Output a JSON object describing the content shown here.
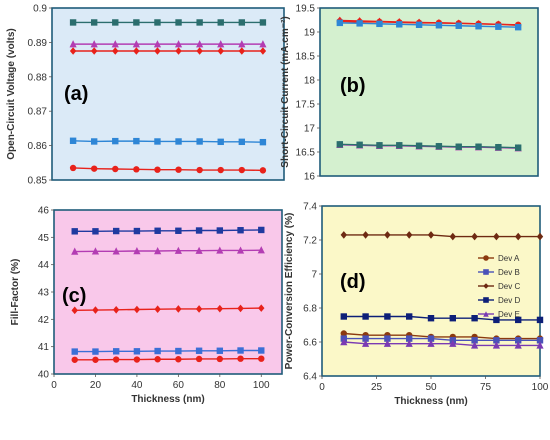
{
  "chart_data": [
    {
      "type": "line",
      "panel_label": "(a)",
      "background": "#dbeaf7",
      "xlabel": "",
      "ylabel": "Open-Circuit Voltage (volts)",
      "ylim": [
        0.85,
        0.9
      ],
      "yticks": [
        "0.85",
        "0.86",
        "0.87",
        "0.88",
        "0.89",
        "0.9"
      ],
      "xlim": [
        0,
        110
      ],
      "xticks": [],
      "x": [
        10,
        20,
        30,
        40,
        50,
        60,
        70,
        80,
        90,
        100
      ],
      "series": [
        {
          "key": "A",
          "color": "#e8221b",
          "marker": "circle",
          "values": [
            0.8535,
            0.8533,
            0.8532,
            0.8531,
            0.853,
            0.853,
            0.8529,
            0.8529,
            0.8529,
            0.8528
          ]
        },
        {
          "key": "B",
          "color": "#2e86d6",
          "marker": "square",
          "values": [
            0.8614,
            0.8612,
            0.8613,
            0.8613,
            0.8612,
            0.8612,
            0.8612,
            0.8611,
            0.8611,
            0.861
          ]
        },
        {
          "key": "C",
          "color": "#e8221b",
          "marker": "diamond",
          "values": [
            0.8875,
            0.8875,
            0.8875,
            0.8875,
            0.8875,
            0.8875,
            0.8875,
            0.8875,
            0.8875,
            0.8875
          ]
        },
        {
          "key": "D",
          "color": "#2b6e6e",
          "marker": "square",
          "values": [
            0.8958,
            0.8958,
            0.8958,
            0.8958,
            0.8958,
            0.8958,
            0.8958,
            0.8958,
            0.8958,
            0.8958
          ]
        },
        {
          "key": "E",
          "color": "#b33db3",
          "marker": "triangle",
          "values": [
            0.8895,
            0.8895,
            0.8895,
            0.8895,
            0.8895,
            0.8895,
            0.8895,
            0.8895,
            0.8895,
            0.8895
          ]
        }
      ]
    },
    {
      "type": "line",
      "panel_label": "(b)",
      "background": "#d4f0cf",
      "xlabel": "",
      "ylabel": "Short-Circuit Current (mA.cm⁻²)",
      "ylim": [
        16,
        19.5
      ],
      "yticks": [
        "16",
        "16.5",
        "17",
        "17.5",
        "18",
        "18.5",
        "19",
        "19.5"
      ],
      "xlim": [
        0,
        110
      ],
      "xticks": [],
      "x": [
        10,
        20,
        30,
        40,
        50,
        60,
        70,
        80,
        90,
        100
      ],
      "series": [
        {
          "key": "A",
          "color": "#e8221b",
          "marker": "circle",
          "values": [
            19.22,
            19.21,
            19.21,
            19.2,
            19.19,
            19.19,
            19.18,
            19.17,
            19.16,
            19.15
          ]
        },
        {
          "key": "C",
          "color": "#e8221b",
          "marker": "diamond",
          "values": [
            19.24,
            19.23,
            19.22,
            19.21,
            19.2,
            19.19,
            19.18,
            19.17,
            19.16,
            19.14
          ]
        },
        {
          "key": "B",
          "color": "#2e86d6",
          "marker": "square",
          "values": [
            19.19,
            19.18,
            19.17,
            19.16,
            19.15,
            19.14,
            19.13,
            19.12,
            19.11,
            19.1
          ]
        },
        {
          "key": "E",
          "color": "#b33db3",
          "marker": "triangle",
          "values": [
            16.65,
            16.64,
            16.63,
            16.63,
            16.62,
            16.61,
            16.6,
            16.6,
            16.59,
            16.58
          ]
        },
        {
          "key": "D",
          "color": "#2b6e6e",
          "marker": "square",
          "values": [
            16.66,
            16.65,
            16.64,
            16.64,
            16.63,
            16.62,
            16.61,
            16.61,
            16.6,
            16.59
          ]
        }
      ]
    },
    {
      "type": "line",
      "panel_label": "(c)",
      "background": "#f9c8ea",
      "xlabel": "Thickness (nm)",
      "ylabel": "Fill-Factor (%)",
      "ylim": [
        40,
        46
      ],
      "yticks": [
        "40",
        "41",
        "42",
        "43",
        "44",
        "45",
        "46"
      ],
      "xlim": [
        0,
        110
      ],
      "xticks": [
        "0",
        "20",
        "40",
        "60",
        "80",
        "100"
      ],
      "x": [
        10,
        20,
        30,
        40,
        50,
        60,
        70,
        80,
        90,
        100
      ],
      "series": [
        {
          "key": "A",
          "color": "#e8221b",
          "marker": "circle",
          "values": [
            40.52,
            40.52,
            40.53,
            40.53,
            40.54,
            40.54,
            40.55,
            40.55,
            40.56,
            40.56
          ]
        },
        {
          "key": "B",
          "color": "#3b6fd6",
          "marker": "square",
          "values": [
            40.82,
            40.82,
            40.83,
            40.83,
            40.84,
            40.84,
            40.85,
            40.85,
            40.86,
            40.86
          ]
        },
        {
          "key": "C",
          "color": "#e8221b",
          "marker": "diamond",
          "values": [
            42.33,
            42.34,
            42.35,
            42.36,
            42.37,
            42.38,
            42.38,
            42.39,
            42.4,
            42.41
          ]
        },
        {
          "key": "D",
          "color": "#1f3aa0",
          "marker": "square",
          "values": [
            45.22,
            45.22,
            45.23,
            45.23,
            45.24,
            45.24,
            45.25,
            45.25,
            45.26,
            45.27
          ]
        },
        {
          "key": "E",
          "color": "#b33db3",
          "marker": "triangle",
          "values": [
            44.48,
            44.49,
            44.49,
            44.5,
            44.5,
            44.51,
            44.51,
            44.52,
            44.52,
            44.53
          ]
        }
      ]
    },
    {
      "type": "line",
      "panel_label": "(d)",
      "background": "#fbf8c8",
      "xlabel": "Thickness (nm)",
      "ylabel": "Power-Conversion Efficiency (%)",
      "ylim": [
        6.4,
        7.4
      ],
      "yticks": [
        "6.4",
        "6.6",
        "6.8",
        "7",
        "7.2",
        "7.4"
      ],
      "xlim": [
        0,
        100
      ],
      "xticks": [
        "0",
        "25",
        "50",
        "75",
        "100"
      ],
      "x": [
        10,
        20,
        30,
        40,
        50,
        60,
        70,
        80,
        90,
        100
      ],
      "series": [
        {
          "key": "A",
          "name": "Dev A",
          "color": "#8b3a0f",
          "marker": "circle",
          "values": [
            6.65,
            6.64,
            6.64,
            6.64,
            6.63,
            6.63,
            6.63,
            6.62,
            6.62,
            6.62
          ]
        },
        {
          "key": "B",
          "name": "Dev B",
          "color": "#4a52b8",
          "marker": "square",
          "values": [
            6.62,
            6.62,
            6.62,
            6.62,
            6.62,
            6.61,
            6.61,
            6.61,
            6.61,
            6.61
          ]
        },
        {
          "key": "C",
          "name": "Dev C",
          "color": "#6e2a12",
          "marker": "diamond",
          "values": [
            7.23,
            7.23,
            7.23,
            7.23,
            7.23,
            7.22,
            7.22,
            7.22,
            7.22,
            7.22
          ]
        },
        {
          "key": "D",
          "name": "Dev D",
          "color": "#0d1f78",
          "marker": "square",
          "values": [
            6.75,
            6.75,
            6.75,
            6.75,
            6.74,
            6.74,
            6.74,
            6.73,
            6.73,
            6.73
          ]
        },
        {
          "key": "E",
          "name": "Dev E",
          "color": "#7a3ab3",
          "marker": "triangle",
          "values": [
            6.6,
            6.59,
            6.59,
            6.59,
            6.59,
            6.59,
            6.58,
            6.58,
            6.58,
            6.58
          ]
        }
      ],
      "legend": {
        "position": "right"
      }
    }
  ]
}
